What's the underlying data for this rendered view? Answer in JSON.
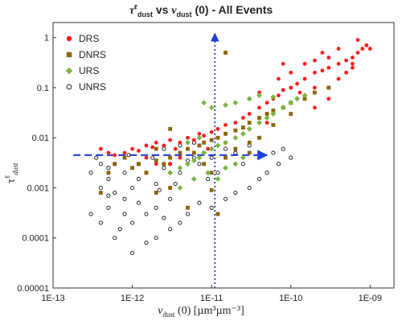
{
  "chart_data": {
    "type": "scatter",
    "title": {
      "symbol": "τ",
      "symbol_sup": "ℓ",
      "symbol_sub": "dust",
      "vs": "vs",
      "var": "v",
      "var_sub": "dust",
      "rest": "(0) - All Events"
    },
    "xlabel": {
      "var": "v",
      "var_sub": "dust",
      "rest": "(0) [µm³µm⁻³]"
    },
    "ylabel": {
      "symbol": "τ",
      "sup": "ℓ",
      "sub": "dust"
    },
    "x_scale": "log",
    "y_scale": "log",
    "xlim": [
      1e-13,
      2e-09
    ],
    "ylim": [
      1e-05,
      2
    ],
    "x_ticks": [
      {
        "v": 1e-13,
        "label": "1E-13"
      },
      {
        "v": 1e-12,
        "label": "1E-12"
      },
      {
        "v": 1e-11,
        "label": "1E-11"
      },
      {
        "v": 1e-10,
        "label": "1E-10"
      },
      {
        "v": 1e-09,
        "label": "1E-09"
      }
    ],
    "y_ticks": [
      {
        "v": 1e-05,
        "label": "0.00001"
      },
      {
        "v": 0.0001,
        "label": "0.0001"
      },
      {
        "v": 0.001,
        "label": "0.001"
      },
      {
        "v": 0.01,
        "label": "0.01"
      },
      {
        "v": 0.1,
        "label": "0.1"
      },
      {
        "v": 1,
        "label": "1"
      }
    ],
    "grid": false,
    "legend_position": "top-left",
    "series": [
      {
        "name": "DRS",
        "color": "#ff1a1a",
        "marker": "circle-filled",
        "points": [
          [
            8e-13,
            0.005
          ],
          [
            1e-12,
            0.006
          ],
          [
            1.2e-12,
            0.0055
          ],
          [
            1.5e-12,
            0.007
          ],
          [
            1.8e-12,
            0.0065
          ],
          [
            2e-12,
            0.008
          ],
          [
            2.5e-12,
            0.007
          ],
          [
            3e-12,
            0.009
          ],
          [
            3.5e-12,
            0.006
          ],
          [
            4e-12,
            0.008
          ],
          [
            5e-12,
            0.01
          ],
          [
            6e-12,
            0.009
          ],
          [
            7e-12,
            0.012
          ],
          [
            8e-12,
            0.011
          ],
          [
            1e-11,
            0.013
          ],
          [
            1.2e-11,
            0.015
          ],
          [
            1.5e-11,
            0.018
          ],
          [
            2e-11,
            0.02
          ],
          [
            2.5e-11,
            0.025
          ],
          [
            3e-11,
            0.03
          ],
          [
            4e-11,
            0.04
          ],
          [
            5e-11,
            0.05
          ],
          [
            6e-11,
            0.06
          ],
          [
            7e-11,
            0.07
          ],
          [
            8e-11,
            0.09
          ],
          [
            1e-10,
            0.1
          ],
          [
            1.2e-10,
            0.12
          ],
          [
            1.5e-10,
            0.15
          ],
          [
            2e-10,
            0.2
          ],
          [
            2.5e-10,
            0.22
          ],
          [
            3e-10,
            0.25
          ],
          [
            4e-10,
            0.3
          ],
          [
            5e-10,
            0.35
          ],
          [
            6e-10,
            0.4
          ],
          [
            7e-10,
            0.5
          ],
          [
            8e-10,
            0.6
          ],
          [
            9e-10,
            0.7
          ],
          [
            1e-09,
            0.6
          ],
          [
            7e-11,
            0.15
          ],
          [
            1e-10,
            0.2
          ],
          [
            1.3e-10,
            0.08
          ],
          [
            2e-10,
            0.1
          ],
          [
            3e-10,
            0.4
          ],
          [
            4e-10,
            0.15
          ],
          [
            5e-10,
            0.2
          ],
          [
            6e-10,
            0.25
          ],
          [
            4e-11,
            0.08
          ],
          [
            5e-11,
            0.02
          ],
          [
            6e-11,
            0.03
          ],
          [
            3e-11,
            0.06
          ],
          [
            2e-11,
            0.01
          ],
          [
            1.5e-11,
            0.008
          ],
          [
            9e-12,
            0.006
          ],
          [
            6e-12,
            0.005
          ],
          [
            4e-12,
            0.004
          ],
          [
            3e-12,
            0.003
          ],
          [
            2e-12,
            0.003
          ],
          [
            1.5e-12,
            0.004
          ],
          [
            4e-13,
            0.006
          ],
          [
            5e-13,
            0.005
          ],
          [
            6e-13,
            0.0045
          ],
          [
            2e-10,
            0.04
          ],
          [
            3e-10,
            0.06
          ],
          [
            1.5e-10,
            0.3
          ],
          [
            8e-11,
            0.3
          ],
          [
            2e-10,
            0.35
          ],
          [
            7e-10,
            0.9
          ],
          [
            4e-10,
            0.6
          ],
          [
            6e-10,
            0.3
          ],
          [
            2.5e-10,
            0.5
          ]
        ]
      },
      {
        "name": "DNRS",
        "color": "#8b6508",
        "marker": "square-filled",
        "points": [
          [
            5e-13,
            0.002
          ],
          [
            6e-13,
            0.003
          ],
          [
            8e-13,
            0.004
          ],
          [
            1e-12,
            0.0025
          ],
          [
            1.2e-12,
            0.003
          ],
          [
            1.5e-12,
            0.002
          ],
          [
            2e-12,
            0.0035
          ],
          [
            2.5e-12,
            0.003
          ],
          [
            3e-12,
            0.004
          ],
          [
            4e-12,
            0.005
          ],
          [
            5e-12,
            0.006
          ],
          [
            6e-12,
            0.005
          ],
          [
            7e-12,
            0.007
          ],
          [
            8e-12,
            0.008
          ],
          [
            1e-11,
            0.009
          ],
          [
            1.2e-11,
            0.01
          ],
          [
            1.5e-11,
            0.012
          ],
          [
            2e-11,
            0.014
          ],
          [
            2.5e-11,
            0.016
          ],
          [
            3e-11,
            0.02
          ],
          [
            4e-11,
            0.025
          ],
          [
            5e-11,
            0.03
          ],
          [
            6e-11,
            0.035
          ],
          [
            8e-11,
            0.04
          ],
          [
            1e-10,
            0.05
          ],
          [
            1.5e-10,
            0.06
          ],
          [
            2e-10,
            0.08
          ],
          [
            3e-10,
            0.1
          ],
          [
            1.5e-11,
            0.5
          ],
          [
            8e-12,
            0.003
          ],
          [
            1e-11,
            0.002
          ],
          [
            1.5e-11,
            0.004
          ],
          [
            2e-11,
            0.006
          ],
          [
            3e-11,
            0.008
          ],
          [
            4e-11,
            0.01
          ],
          [
            2e-12,
            0.0008
          ],
          [
            3e-12,
            0.001
          ],
          [
            1e-11,
            0.0009
          ],
          [
            5e-12,
            0.0004
          ],
          [
            1.2e-11,
            0.0003
          ],
          [
            3e-11,
            0.005
          ],
          [
            6e-11,
            0.018
          ],
          [
            1e-10,
            0.03
          ],
          [
            4e-13,
            0.0008
          ],
          [
            3e-12,
            0.015
          ],
          [
            2e-12,
            0.006
          ]
        ]
      },
      {
        "name": "URS",
        "color": "#7cb342",
        "marker": "diamond-filled",
        "points": [
          [
            3e-12,
            0.002
          ],
          [
            4e-12,
            0.0025
          ],
          [
            5e-12,
            0.003
          ],
          [
            6e-12,
            0.0035
          ],
          [
            7e-12,
            0.004
          ],
          [
            8e-12,
            0.005
          ],
          [
            1e-11,
            0.006
          ],
          [
            1.2e-11,
            0.007
          ],
          [
            1.5e-11,
            0.008
          ],
          [
            2e-11,
            0.01
          ],
          [
            2.5e-11,
            0.012
          ],
          [
            3e-11,
            0.015
          ],
          [
            4e-11,
            0.02
          ],
          [
            5e-11,
            0.025
          ],
          [
            6e-11,
            0.03
          ],
          [
            8e-11,
            0.04
          ],
          [
            1e-10,
            0.05
          ],
          [
            1.2e-10,
            0.06
          ],
          [
            1.5e-10,
            0.07
          ],
          [
            8e-12,
            0.05
          ],
          [
            1e-11,
            0.04
          ],
          [
            1.5e-11,
            0.045
          ],
          [
            2e-11,
            0.05
          ],
          [
            3e-11,
            0.06
          ],
          [
            4e-11,
            0.07
          ],
          [
            6e-11,
            0.065
          ],
          [
            9e-12,
            0.002
          ],
          [
            1.2e-11,
            0.0015
          ],
          [
            2e-11,
            0.003
          ],
          [
            4e-12,
            0.001
          ],
          [
            6e-12,
            0.0015
          ],
          [
            1.5e-11,
            0.0025
          ],
          [
            2.5e-11,
            0.004
          ],
          [
            5e-12,
            0.008
          ],
          [
            7e-12,
            0.01
          ]
        ]
      },
      {
        "name": "UNRS",
        "color": "#111111",
        "marker": "circle-open",
        "points": [
          [
            3e-13,
            0.0003
          ],
          [
            4e-13,
            0.0002
          ],
          [
            5e-13,
            0.0004
          ],
          [
            6e-13,
            0.0001
          ],
          [
            7e-13,
            0.00015
          ],
          [
            8e-13,
            0.0003
          ],
          [
            1e-12,
            0.0002
          ],
          [
            1.2e-12,
            0.0005
          ],
          [
            1.5e-12,
            0.0003
          ],
          [
            2e-12,
            0.0004
          ],
          [
            2.5e-12,
            0.00025
          ],
          [
            3e-12,
            0.0006
          ],
          [
            4e-13,
            0.001
          ],
          [
            5e-13,
            0.0015
          ],
          [
            6e-13,
            0.0008
          ],
          [
            8e-13,
            0.002
          ],
          [
            1e-12,
            0.001
          ],
          [
            1.2e-12,
            0.0015
          ],
          [
            1.5e-12,
            0.002
          ],
          [
            2e-12,
            0.0012
          ],
          [
            2.5e-12,
            0.0025
          ],
          [
            3e-12,
            0.003
          ],
          [
            4e-12,
            0.002
          ],
          [
            5e-12,
            0.0035
          ],
          [
            6e-12,
            0.004
          ],
          [
            7e-12,
            0.003
          ],
          [
            8e-12,
            0.005
          ],
          [
            1e-11,
            0.004
          ],
          [
            1.5e-11,
            0.006
          ],
          [
            2e-11,
            0.005
          ],
          [
            3e-11,
            0.007
          ],
          [
            3.5e-13,
            0.004
          ],
          [
            4e-13,
            0.003
          ],
          [
            5e-13,
            0.0025
          ],
          [
            3e-13,
            0.002
          ],
          [
            6e-13,
            0.003
          ],
          [
            9e-13,
            0.0045
          ],
          [
            1.5e-12,
            8e-05
          ],
          [
            2e-12,
            0.0001
          ],
          [
            1e-12,
            5e-05
          ],
          [
            3e-12,
            0.00015
          ],
          [
            4e-12,
            0.0002
          ],
          [
            5e-12,
            0.0003
          ],
          [
            7e-12,
            0.0005
          ],
          [
            1e-11,
            0.0004
          ],
          [
            1.5e-11,
            0.0006
          ],
          [
            2e-11,
            0.0008
          ],
          [
            3e-11,
            0.001
          ],
          [
            4e-11,
            0.0015
          ],
          [
            5e-11,
            0.002
          ],
          [
            7e-11,
            0.003
          ],
          [
            4e-12,
            0.007
          ],
          [
            6e-12,
            0.008
          ],
          [
            2.5e-12,
            0.006
          ],
          [
            1.8e-12,
            0.004
          ],
          [
            1.2e-12,
            0.003
          ],
          [
            8e-13,
            0.0006
          ],
          [
            5e-13,
            0.0007
          ],
          [
            2.2e-12,
            0.0009
          ],
          [
            3.5e-12,
            0.0012
          ],
          [
            9e-12,
            0.0015
          ],
          [
            1.2e-11,
            0.002
          ],
          [
            2.5e-11,
            0.003
          ],
          [
            6e-11,
            0.005
          ],
          [
            8e-11,
            0.006
          ],
          [
            1e-10,
            0.004
          ]
        ]
      }
    ],
    "reference_lines": [
      {
        "orientation": "horizontal",
        "y": 0.0045,
        "x_from": 1.8e-13,
        "x_to": 5e-11,
        "color": "#1f3fd8",
        "style": "dashed",
        "arrow": true
      },
      {
        "orientation": "vertical",
        "x": 1.1e-11,
        "y_from": 1e-05,
        "y_to": 1.2,
        "color": "#1f3fd8",
        "style": "dotted",
        "arrow": true
      }
    ]
  }
}
